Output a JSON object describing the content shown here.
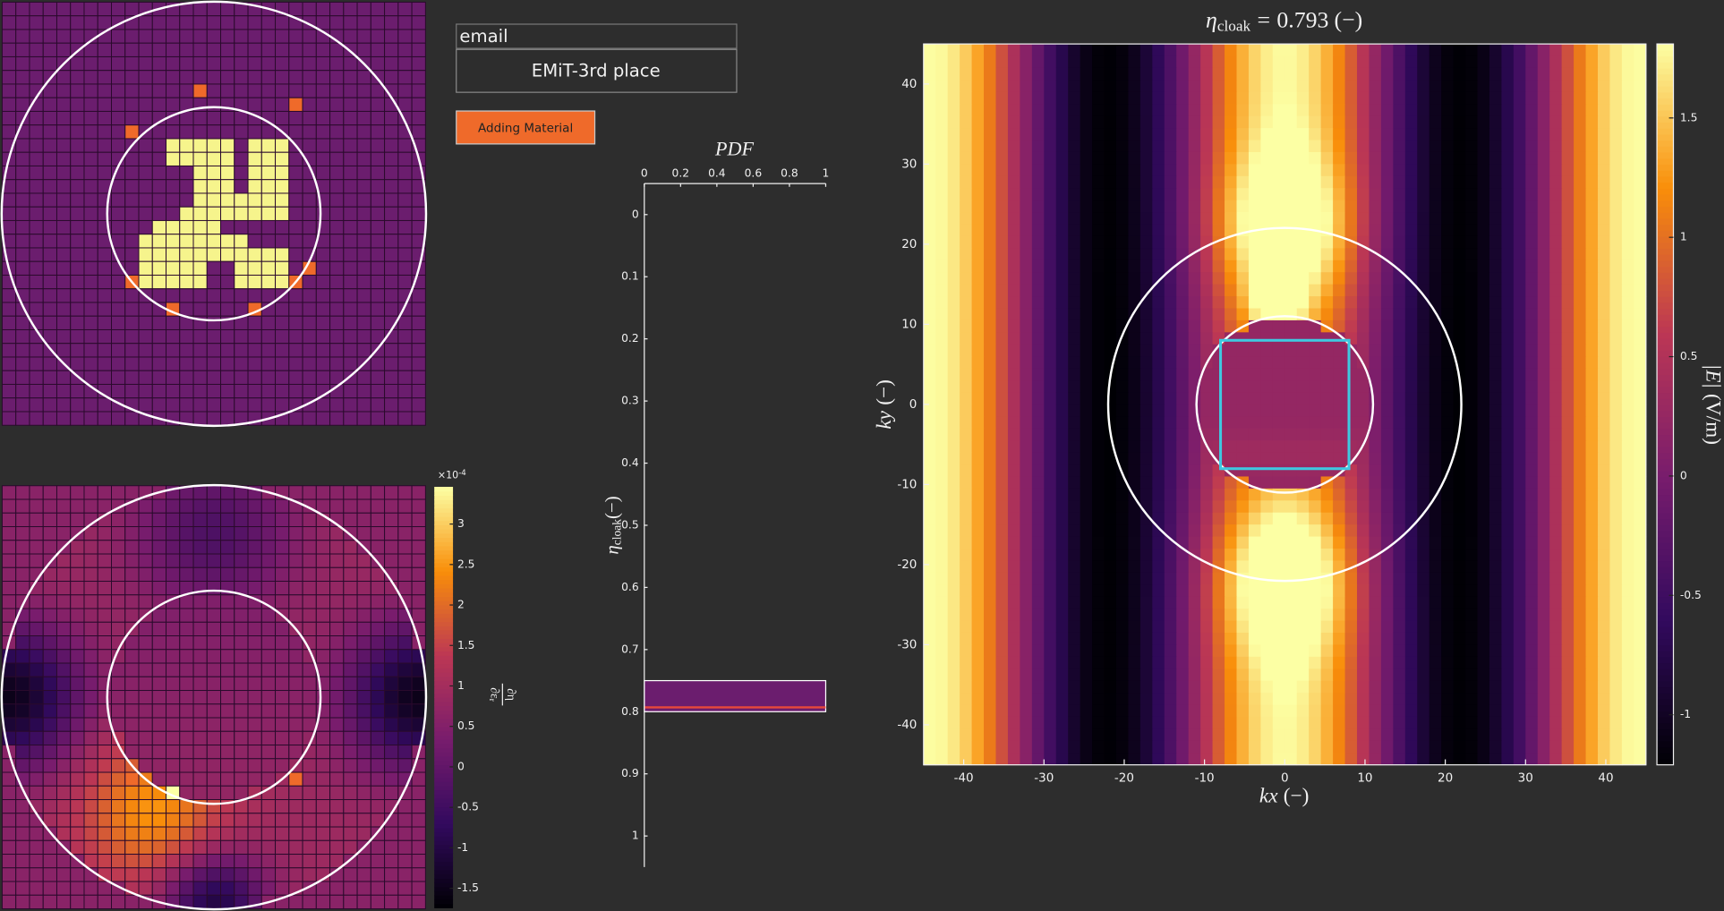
{
  "inputs": {
    "email": "email",
    "team": "EMiT-3rd place",
    "button": "Adding Material"
  },
  "sensitivity": {
    "type": "colorbar",
    "multiplier": {
      "base": "×10",
      "exponent": "-4"
    },
    "label": {
      "numerator": "∂η",
      "denominator": "∂ε",
      "subscript": "r"
    },
    "ticks": [
      3,
      2.5,
      2,
      1.5,
      1,
      0.5,
      0,
      -0.5,
      -1,
      -1.5
    ],
    "lim": [
      -1.74,
      3.46
    ]
  },
  "pdf": {
    "type": "histogram",
    "title": "PDF",
    "ylabel": {
      "symbol": "η",
      "subscript": "cloak",
      "unit": "(−)"
    },
    "xlim": [
      0,
      1
    ],
    "xticks": [
      0,
      0.2,
      0.4,
      0.6,
      0.8,
      1
    ],
    "ylim": [
      -0.05,
      1.05
    ],
    "yticks": [
      0,
      0.1,
      0.2,
      0.3,
      0.4,
      0.5,
      0.6,
      0.7,
      0.8,
      0.9,
      1
    ],
    "bins": [
      0.75,
      0.8
    ],
    "counts": [
      1
    ],
    "bar_color": "#6b1d6e",
    "line_color": "#e8483a"
  },
  "field": {
    "type": "heatmap",
    "title": {
      "symbol": "η",
      "subscript": "cloak",
      "equals": "=",
      "value": 0.793,
      "unit": "(−)"
    },
    "xlabel": {
      "var": "kx",
      "unit": "(−)"
    },
    "ylabel": {
      "var": "ky",
      "unit": "(−)"
    },
    "xlim": [
      -45,
      45
    ],
    "xticks": [
      -40,
      -30,
      -20,
      -10,
      0,
      10,
      20,
      30,
      40
    ],
    "ylim": [
      -45,
      45
    ],
    "yticks": [
      -40,
      -30,
      -20,
      -10,
      0,
      10,
      20,
      30,
      40
    ],
    "colorbar": {
      "label": {
        "var": "|E|",
        "unit": "(V/m)"
      },
      "lim": [
        -1.21,
        1.81
      ],
      "ticks": [
        -1,
        -0.5,
        0,
        0.5,
        1,
        1.5
      ]
    },
    "circles": [
      22,
      11
    ],
    "square": 8,
    "square_color": "#3fc8e0"
  }
}
